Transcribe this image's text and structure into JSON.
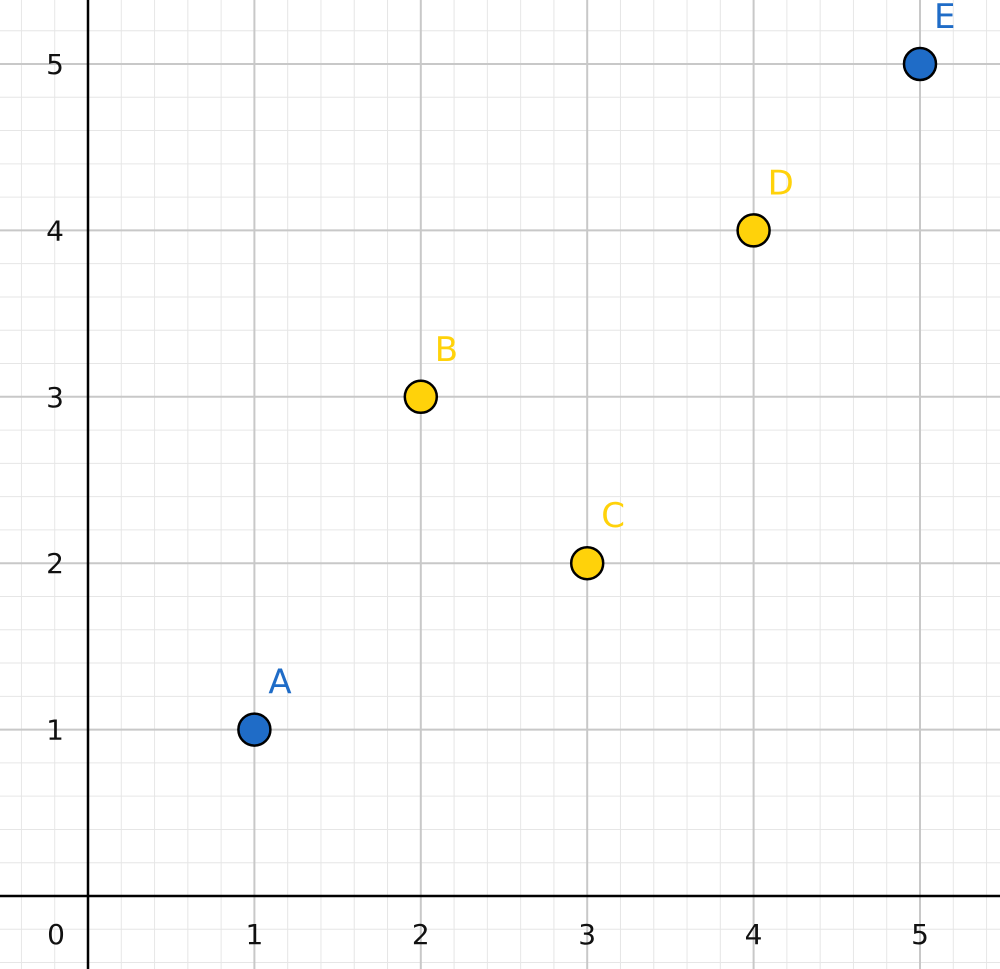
{
  "chart_data": {
    "type": "scatter",
    "xlim": [
      -0.5,
      5.5
    ],
    "ylim": [
      -0.5,
      5.4
    ],
    "grid": true,
    "grid_minor_step": 0.2,
    "origin_label": "0",
    "x_ticks": [
      1,
      2,
      3,
      4,
      5
    ],
    "y_ticks": [
      1,
      2,
      3,
      4,
      5
    ],
    "x_tick_labels": [
      "1",
      "2",
      "3",
      "4",
      "5"
    ],
    "y_tick_labels": [
      "1",
      "2",
      "3",
      "4",
      "5"
    ],
    "points": [
      {
        "label": "A",
        "x": 1,
        "y": 1,
        "color": "#1f6cc7"
      },
      {
        "label": "B",
        "x": 2,
        "y": 3,
        "color": "#ffd20a"
      },
      {
        "label": "C",
        "x": 3,
        "y": 2,
        "color": "#ffd20a"
      },
      {
        "label": "D",
        "x": 4,
        "y": 4,
        "color": "#ffd20a"
      },
      {
        "label": "E",
        "x": 5,
        "y": 5,
        "color": "#1f6cc7"
      }
    ],
    "label_colors": {
      "blue": "#1f6cc7",
      "yellow": "#ffd20a"
    }
  }
}
